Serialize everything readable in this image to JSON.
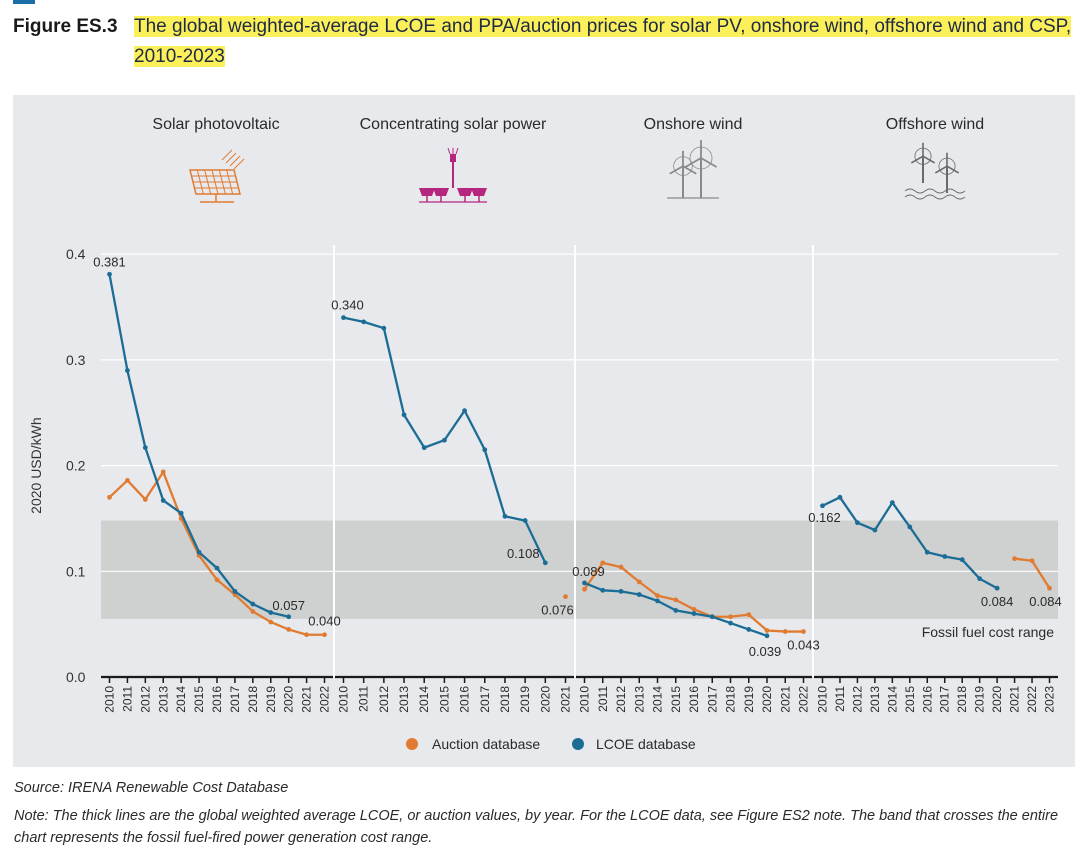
{
  "figure": {
    "label": "Figure ES.3",
    "title": "The global weighted-average LCOE and PPA/auction prices for solar PV, onshore wind, offshore wind and CSP, 2010-2023"
  },
  "source": "Source: IRENA Renewable Cost Database",
  "note": "Note: The thick lines are the global weighted average LCOE, or auction values, by year. For the LCOE data, see Figure ES2 note. The band that crosses the entire chart represents the fossil fuel-fired power generation cost range.",
  "colors": {
    "lcoe": "#1b6d96",
    "auction": "#e07b31",
    "band": "#cfd0d0",
    "panel_bg": "#e7e9ec"
  },
  "chart_data": {
    "type": "line",
    "ylabel": "2020 USD/kWh",
    "ylim": [
      0,
      0.4
    ],
    "yticks": [
      "0.0",
      "0.1",
      "0.2",
      "0.3",
      "0.4"
    ],
    "fossil_band": {
      "range": [
        0.055,
        0.148
      ],
      "label": "Fossil fuel cost range"
    },
    "legend": {
      "position": "bottom-center",
      "auction": "Auction database",
      "lcoe": "LCOE database"
    },
    "panels": [
      {
        "title": "Solar photovoltaic",
        "icon": "solar-panel-icon",
        "icon_color": "#e07b31",
        "years": [
          "2010",
          "2011",
          "2012",
          "2013",
          "2014",
          "2015",
          "2016",
          "2017",
          "2018",
          "2019",
          "2020",
          "2021",
          "2022"
        ],
        "lcoe": [
          0.381,
          0.29,
          0.217,
          0.167,
          0.155,
          0.118,
          0.103,
          0.081,
          0.069,
          0.061,
          0.057,
          null,
          null
        ],
        "auction": [
          0.17,
          0.186,
          0.168,
          0.194,
          0.15,
          0.115,
          0.092,
          0.078,
          0.062,
          0.052,
          0.045,
          0.04,
          0.04
        ],
        "labels": [
          {
            "text": "0.381",
            "series": "lcoe",
            "year_index": 0
          },
          {
            "text": "0.057",
            "series": "lcoe",
            "year_index": 10
          },
          {
            "text": "0.040",
            "series": "auction",
            "year_index": 12
          }
        ]
      },
      {
        "title": "Concentrating solar power",
        "icon": "csp-tower-icon",
        "icon_color": "#b5267f",
        "years": [
          "2010",
          "2011",
          "2012",
          "2013",
          "2014",
          "2015",
          "2016",
          "2017",
          "2018",
          "2019",
          "2020",
          "2021"
        ],
        "lcoe": [
          0.34,
          0.336,
          0.33,
          0.248,
          0.217,
          0.224,
          0.252,
          0.215,
          0.152,
          0.148,
          0.108,
          null
        ],
        "auction": [
          null,
          null,
          null,
          null,
          null,
          null,
          null,
          null,
          null,
          null,
          null,
          0.076
        ],
        "labels": [
          {
            "text": "0.340",
            "series": "lcoe",
            "year_index": 0
          },
          {
            "text": "0.108",
            "series": "lcoe",
            "year_index": 10
          },
          {
            "text": "0.076",
            "series": "auction",
            "year_index": 11
          }
        ]
      },
      {
        "title": "Onshore wind",
        "icon": "onshore-wind-turbine-icon",
        "icon_color": "#8a8a8a",
        "years": [
          "2010",
          "2011",
          "2012",
          "2013",
          "2014",
          "2015",
          "2016",
          "2017",
          "2018",
          "2019",
          "2020",
          "2021",
          "2022"
        ],
        "lcoe": [
          0.089,
          0.082,
          0.081,
          0.078,
          0.072,
          0.063,
          0.06,
          0.057,
          0.051,
          0.045,
          0.039,
          null,
          null
        ],
        "auction": [
          0.083,
          0.108,
          0.104,
          0.09,
          0.077,
          0.073,
          0.064,
          0.057,
          0.057,
          0.059,
          0.044,
          0.043,
          0.043
        ],
        "labels": [
          {
            "text": "0.089",
            "series": "lcoe",
            "year_index": 0
          },
          {
            "text": "0.039",
            "series": "lcoe",
            "year_index": 10
          },
          {
            "text": "0.043",
            "series": "auction",
            "year_index": 12
          }
        ]
      },
      {
        "title": "Offshore wind",
        "icon": "offshore-wind-turbine-icon",
        "icon_color": "#6a6a6a",
        "years": [
          "2010",
          "2011",
          "2012",
          "2013",
          "2014",
          "2015",
          "2016",
          "2017",
          "2018",
          "2019",
          "2020",
          "2021",
          "2022",
          "2023"
        ],
        "lcoe": [
          0.162,
          0.17,
          0.146,
          0.139,
          0.165,
          0.142,
          0.118,
          0.114,
          0.111,
          0.093,
          0.084,
          null,
          null,
          null
        ],
        "auction": [
          null,
          null,
          null,
          null,
          null,
          null,
          null,
          null,
          null,
          null,
          null,
          0.112,
          0.11,
          0.084
        ],
        "labels": [
          {
            "text": "0.162",
            "series": "lcoe",
            "year_index": 0
          },
          {
            "text": "0.084",
            "series": "lcoe",
            "year_index": 10
          },
          {
            "text": "0.084",
            "series": "auction",
            "year_index": 13
          }
        ]
      }
    ]
  }
}
